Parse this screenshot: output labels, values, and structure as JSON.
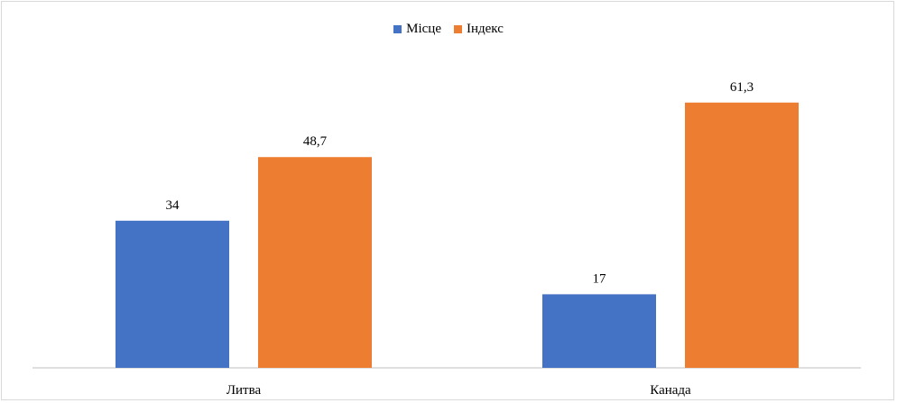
{
  "legend": {
    "series_1": "Місце",
    "series_2": "Індекс"
  },
  "colors": {
    "series_1": "#4472C4",
    "series_2": "#ED7D31",
    "axis": "#bfbfbf"
  },
  "chart_data": {
    "type": "bar",
    "categories": [
      "Литва",
      "Канада"
    ],
    "series": [
      {
        "name": "Місце",
        "values": [
          34,
          17
        ],
        "labels": [
          "34",
          "17"
        ]
      },
      {
        "name": "Індекс",
        "values": [
          48.7,
          61.3
        ],
        "labels": [
          "48,7",
          "61,3"
        ]
      }
    ],
    "ylim": [
      0,
      70
    ],
    "grid": false,
    "legend_position": "top"
  }
}
